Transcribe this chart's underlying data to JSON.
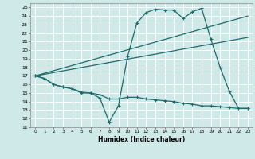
{
  "background_color": "#cfe8e8",
  "grid_color": "#ffffff",
  "line_color": "#1a6b6b",
  "xlabel": "Humidex (Indice chaleur)",
  "xlim": [
    -0.5,
    23.5
  ],
  "ylim": [
    11,
    25.5
  ],
  "xticks": [
    0,
    1,
    2,
    3,
    4,
    5,
    6,
    7,
    8,
    9,
    10,
    11,
    12,
    13,
    14,
    15,
    16,
    17,
    18,
    19,
    20,
    21,
    22,
    23
  ],
  "yticks": [
    11,
    12,
    13,
    14,
    15,
    16,
    17,
    18,
    19,
    20,
    21,
    22,
    23,
    24,
    25
  ],
  "curve1_x": [
    0,
    1,
    2,
    3,
    4,
    5,
    6,
    7,
    8,
    9,
    10,
    11,
    12,
    13,
    14,
    15,
    16,
    17,
    18,
    19,
    20,
    21,
    22,
    23
  ],
  "curve1_y": [
    17.0,
    16.7,
    16.0,
    15.7,
    15.5,
    15.0,
    15.0,
    14.4,
    11.6,
    13.5,
    19.3,
    23.2,
    24.4,
    24.8,
    24.7,
    24.7,
    23.7,
    24.5,
    24.9,
    21.3,
    18.0,
    15.2,
    13.2,
    13.2
  ],
  "curve2_x": [
    0,
    23
  ],
  "curve2_y": [
    17.0,
    24.0
  ],
  "curve3_x": [
    0,
    23
  ],
  "curve3_y": [
    17.0,
    21.5
  ],
  "curve4_x": [
    0,
    1,
    2,
    3,
    4,
    5,
    6,
    7,
    8,
    9,
    10,
    11,
    12,
    13,
    14,
    15,
    16,
    17,
    18,
    19,
    20,
    21,
    22,
    23
  ],
  "curve4_y": [
    17.0,
    16.7,
    16.0,
    15.7,
    15.5,
    15.1,
    15.0,
    14.8,
    14.3,
    14.3,
    14.5,
    14.5,
    14.3,
    14.2,
    14.1,
    14.0,
    13.8,
    13.7,
    13.5,
    13.5,
    13.4,
    13.3,
    13.2,
    13.2
  ]
}
